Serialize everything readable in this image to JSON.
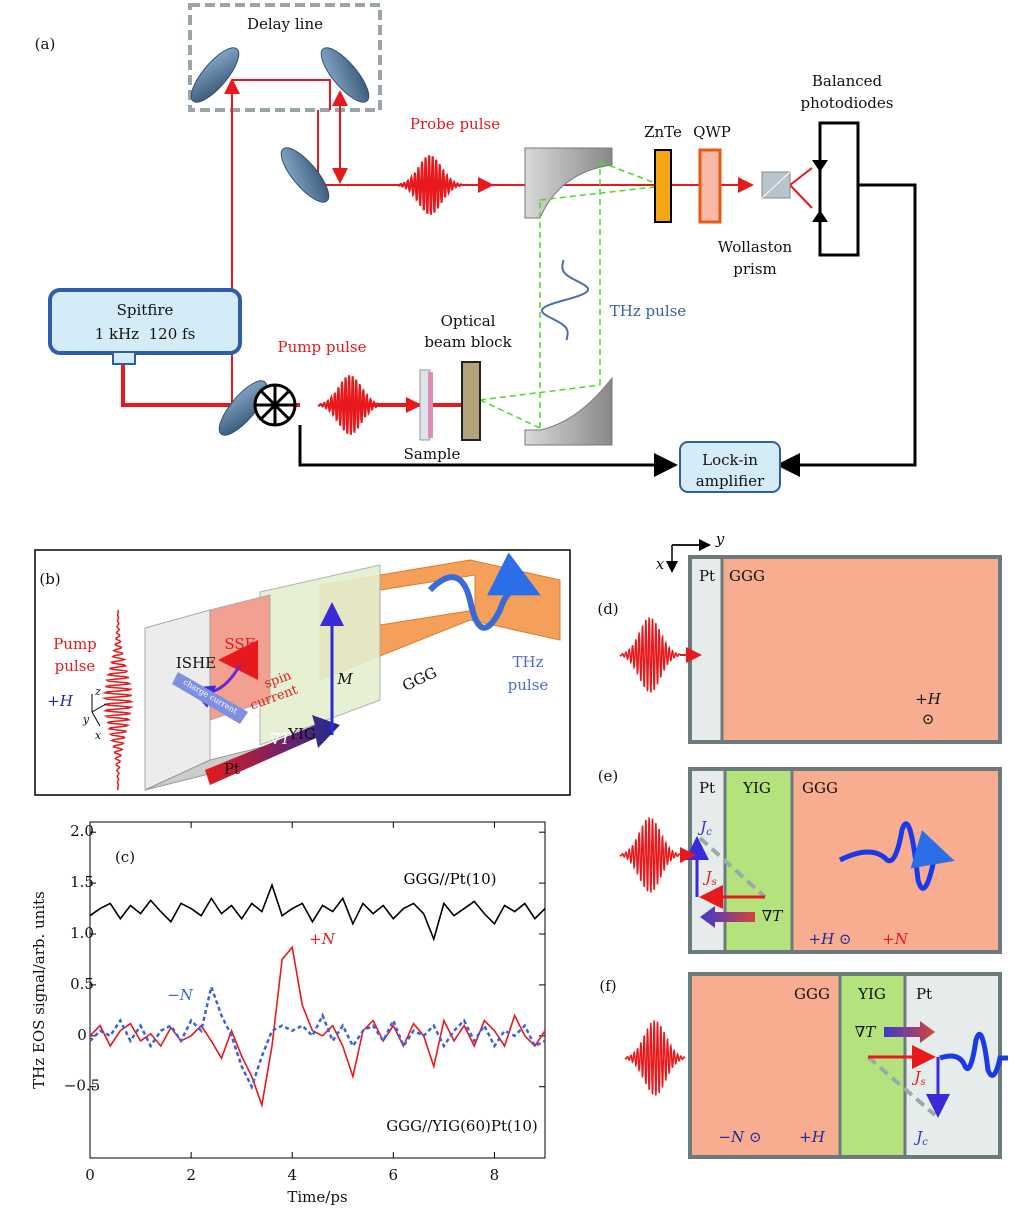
{
  "panel_a": {
    "label": "(a)",
    "delay_line": "Delay line",
    "probe_pulse": "Probe pulse",
    "znte": "ZnTe",
    "qwp": "QWP",
    "balanced_photodiodes": [
      "Balanced",
      "photodiodes"
    ],
    "wollaston_prism": [
      "Wollaston",
      "prism"
    ],
    "thz_pulse": "THz pulse",
    "optical_beam_block": [
      "Optical",
      "beam block"
    ],
    "spitfire": [
      "Spitfire",
      "1 kHz  120 fs"
    ],
    "pump_pulse": "Pump pulse",
    "sample": "Sample",
    "lock_in_amplifier": [
      "Lock-in",
      "amplifier"
    ]
  },
  "panel_b": {
    "label": "(b)",
    "pump_pulse": [
      "Pump",
      "pulse"
    ],
    "sse": "SSE",
    "ishe": "ISHE",
    "spin_current": [
      "spin",
      "current"
    ],
    "charge_current": "charge current",
    "m": "M",
    "ggg": "GGG",
    "thz_pulse": [
      "THz",
      "pulse"
    ],
    "h": "+H",
    "axes": [
      "z",
      "y",
      "x"
    ],
    "yig": "YIG",
    "pt": "Pt",
    "grad_t": "∇T"
  },
  "chart_data": {
    "type": "line",
    "panel_label": "(c)",
    "xlabel": "Time/ps",
    "ylabel": "THz EOS signal/arb. units",
    "annotation": "GGG//YIG(60)Pt(10)",
    "x": [
      0,
      0.2,
      0.4,
      0.6,
      0.8,
      1.0,
      1.2,
      1.4,
      1.6,
      1.8,
      2.0,
      2.2,
      2.4,
      2.6,
      2.8,
      3.0,
      3.2,
      3.4,
      3.6,
      3.8,
      4.0,
      4.2,
      4.4,
      4.6,
      4.8,
      5.0,
      5.2,
      5.4,
      5.6,
      5.8,
      6.0,
      6.2,
      6.4,
      6.6,
      6.8,
      7.0,
      7.2,
      7.4,
      7.6,
      7.8,
      8.0,
      8.2,
      8.4,
      8.6,
      8.8,
      9.0
    ],
    "series": [
      {
        "name": "GGG//Pt(10)",
        "color": "#000000",
        "linestyle": "solid",
        "values": [
          1.18,
          1.25,
          1.3,
          1.15,
          1.28,
          1.2,
          1.33,
          1.22,
          1.12,
          1.3,
          1.25,
          1.18,
          1.35,
          1.2,
          1.28,
          1.15,
          1.3,
          1.22,
          1.48,
          1.18,
          1.25,
          1.3,
          1.12,
          1.28,
          1.22,
          1.35,
          1.1,
          1.3,
          1.2,
          1.28,
          1.15,
          1.25,
          1.3,
          1.2,
          0.95,
          1.3,
          1.18,
          1.25,
          1.32,
          1.2,
          1.1,
          1.28,
          1.22,
          1.3,
          1.15,
          1.25
        ]
      },
      {
        "name": "+N",
        "color": "#e8191c",
        "linestyle": "solid",
        "values": [
          0.0,
          0.1,
          -0.1,
          0.05,
          0.12,
          -0.05,
          0.02,
          -0.1,
          0.08,
          -0.05,
          0.0,
          0.1,
          -0.05,
          -0.22,
          0.05,
          -0.2,
          -0.4,
          -0.68,
          -0.1,
          0.75,
          0.87,
          0.3,
          0.05,
          0.0,
          0.1,
          -0.1,
          -0.4,
          0.05,
          0.15,
          -0.05,
          0.1,
          -0.1,
          0.12,
          0.0,
          -0.3,
          0.15,
          -0.05,
          0.1,
          -0.1,
          0.15,
          0.05,
          -0.1,
          0.2,
          0.0,
          -0.1,
          0.05
        ]
      },
      {
        "name": "−N",
        "color": "#3a62e0",
        "linestyle": "dotted",
        "values": [
          -0.05,
          0.05,
          0.0,
          0.15,
          -0.05,
          0.1,
          -0.1,
          0.05,
          0.1,
          -0.05,
          0.15,
          0.05,
          0.48,
          0.2,
          0.0,
          -0.3,
          -0.5,
          -0.2,
          0.05,
          0.1,
          0.05,
          0.1,
          0.0,
          0.2,
          -0.05,
          0.1,
          -0.1,
          0.05,
          0.1,
          -0.05,
          0.15,
          -0.1,
          0.05,
          0.0,
          0.1,
          -0.1,
          0.05,
          0.15,
          -0.05,
          0.1,
          -0.1,
          0.05,
          0.0,
          0.1,
          -0.1,
          -0.05
        ]
      }
    ],
    "xlim": [
      0,
      9
    ],
    "xticks": [
      0,
      2,
      4,
      6,
      8
    ],
    "ylim": [
      -1.2,
      2.1
    ],
    "yticks": [
      {
        "value": -0.5,
        "label": "−0.5"
      },
      0,
      0.5,
      {
        "value": 1.0,
        "label": "1.0"
      },
      1.5,
      {
        "value": 2.0,
        "label": "2.0"
      }
    ]
  },
  "panel_d": {
    "label": "(d)",
    "axes": [
      "x",
      "y"
    ],
    "pt": "Pt",
    "ggg": "GGG",
    "h": "+H",
    "odot": "⊙"
  },
  "panel_e": {
    "label": "(e)",
    "pt": "Pt",
    "yig": "YIG",
    "ggg": "GGG",
    "jc": {
      "main": "J",
      "sub": "c"
    },
    "js": {
      "main": "J",
      "sub": "s"
    },
    "grad_t": "∇T",
    "h": "+H ⊙",
    "n": "+N"
  },
  "panel_f": {
    "label": "(f)",
    "ggg": "GGG",
    "yig": "YIG",
    "pt": "Pt",
    "grad_t": "∇T",
    "js": {
      "main": "J",
      "sub": "s"
    },
    "jc": {
      "main": "J",
      "sub": "c"
    },
    "n": "−N ⊙",
    "h": "+H"
  }
}
